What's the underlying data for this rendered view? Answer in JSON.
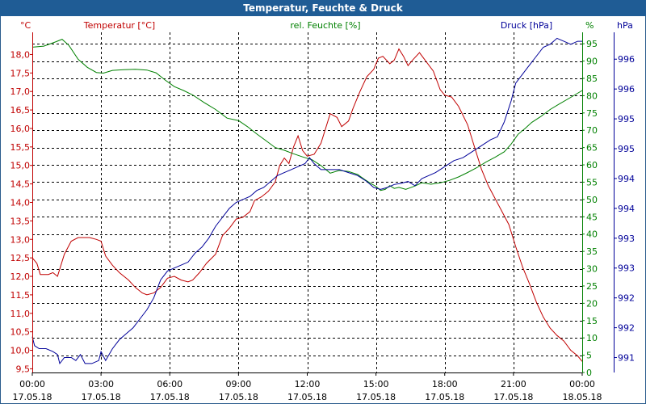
{
  "chart_data": {
    "type": "line",
    "title": "Temperatur, Feuchte & Druck",
    "grid": true,
    "colors": {
      "temp": "#c00000",
      "hum": "#008000",
      "press": "#000099",
      "title_bg": "#1f5c95"
    },
    "axes": {
      "left": {
        "label": "Temperatur [°C]",
        "unit": "°C",
        "color": "#c00000",
        "range": [
          9.4,
          18.6
        ],
        "ticks": [
          "9,5",
          "10,0",
          "10,5",
          "11,0",
          "11,5",
          "12,0",
          "12,5",
          "13,0",
          "13,5",
          "14,0",
          "14,5",
          "15,0",
          "15,5",
          "16,0",
          "16,5",
          "17,0",
          "17,5",
          "18,0"
        ],
        "tick_values": [
          9.5,
          10.0,
          10.5,
          11.0,
          11.5,
          12.0,
          12.5,
          13.0,
          13.5,
          14.0,
          14.5,
          15.0,
          15.5,
          16.0,
          16.5,
          17.0,
          17.5,
          18.0
        ]
      },
      "mid": {
        "label": "rel. Feuchte [%]",
        "unit": "%",
        "color": "#008000",
        "range": [
          0,
          98.3
        ],
        "ticks": [
          "0",
          "5",
          "10",
          "15",
          "20",
          "25",
          "30",
          "35",
          "40",
          "45",
          "50",
          "55",
          "60",
          "65",
          "70",
          "75",
          "80",
          "85",
          "90",
          "95"
        ],
        "tick_values": [
          0,
          5,
          10,
          15,
          20,
          25,
          30,
          35,
          40,
          45,
          50,
          55,
          60,
          65,
          70,
          75,
          80,
          85,
          90,
          95
        ]
      },
      "right": {
        "label": "Druck [hPa]",
        "unit": "hPa",
        "color": "#000099",
        "range": [
          990.75,
          996.45
        ],
        "ticks": [
          "991",
          "992",
          "992",
          "993",
          "993",
          "994",
          "994",
          "995",
          "995",
          "996",
          "996"
        ],
        "tick_values": [
          991.0,
          991.5,
          992.0,
          992.5,
          993.0,
          993.5,
          994.0,
          994.5,
          995.0,
          995.5,
          996.0
        ]
      }
    },
    "x": {
      "range": [
        0,
        24
      ],
      "ticks": [
        {
          "time": "00:00",
          "date": "17.05.18",
          "h": 0
        },
        {
          "time": "03:00",
          "date": "17.05.18",
          "h": 3
        },
        {
          "time": "06:00",
          "date": "17.05.18",
          "h": 6
        },
        {
          "time": "09:00",
          "date": "17.05.18",
          "h": 9
        },
        {
          "time": "12:00",
          "date": "17.05.18",
          "h": 12
        },
        {
          "time": "15:00",
          "date": "17.05.18",
          "h": 15
        },
        {
          "time": "18:00",
          "date": "17.05.18",
          "h": 18
        },
        {
          "time": "21:00",
          "date": "17.05.18",
          "h": 21
        },
        {
          "time": "00:00",
          "date": "18.05.18",
          "h": 24
        }
      ]
    },
    "series": [
      {
        "name": "Temperatur",
        "axis": "left",
        "color": "#c00000",
        "points": [
          [
            0,
            12.5
          ],
          [
            0.2,
            12.35
          ],
          [
            0.35,
            12.05
          ],
          [
            0.7,
            12.05
          ],
          [
            0.9,
            12.1
          ],
          [
            1.1,
            12.0
          ],
          [
            1.4,
            12.6
          ],
          [
            1.7,
            12.95
          ],
          [
            2.0,
            13.05
          ],
          [
            2.5,
            13.05
          ],
          [
            2.8,
            13.0
          ],
          [
            3.0,
            12.95
          ],
          [
            3.2,
            12.55
          ],
          [
            3.5,
            12.3
          ],
          [
            3.8,
            12.1
          ],
          [
            4.2,
            11.9
          ],
          [
            4.5,
            11.7
          ],
          [
            4.8,
            11.55
          ],
          [
            5.0,
            11.5
          ],
          [
            5.3,
            11.55
          ],
          [
            5.6,
            11.7
          ],
          [
            5.9,
            11.95
          ],
          [
            6.2,
            12.0
          ],
          [
            6.5,
            11.9
          ],
          [
            6.8,
            11.85
          ],
          [
            7.0,
            11.9
          ],
          [
            7.3,
            12.1
          ],
          [
            7.6,
            12.35
          ],
          [
            8.0,
            12.6
          ],
          [
            8.3,
            13.1
          ],
          [
            8.6,
            13.3
          ],
          [
            8.9,
            13.55
          ],
          [
            9.2,
            13.6
          ],
          [
            9.5,
            13.75
          ],
          [
            9.7,
            14.05
          ],
          [
            10.0,
            14.15
          ],
          [
            10.3,
            14.3
          ],
          [
            10.6,
            14.55
          ],
          [
            10.8,
            15.0
          ],
          [
            11.0,
            15.2
          ],
          [
            11.2,
            15.05
          ],
          [
            11.4,
            15.5
          ],
          [
            11.6,
            15.8
          ],
          [
            11.8,
            15.4
          ],
          [
            12.0,
            15.25
          ],
          [
            12.3,
            15.3
          ],
          [
            12.6,
            15.6
          ],
          [
            12.8,
            16.0
          ],
          [
            13.0,
            16.4
          ],
          [
            13.3,
            16.3
          ],
          [
            13.5,
            16.05
          ],
          [
            13.8,
            16.2
          ],
          [
            14.0,
            16.55
          ],
          [
            14.3,
            17.0
          ],
          [
            14.6,
            17.4
          ],
          [
            14.9,
            17.6
          ],
          [
            15.1,
            17.9
          ],
          [
            15.3,
            17.95
          ],
          [
            15.6,
            17.75
          ],
          [
            15.8,
            17.85
          ],
          [
            16.0,
            18.15
          ],
          [
            16.2,
            17.95
          ],
          [
            16.4,
            17.7
          ],
          [
            16.6,
            17.85
          ],
          [
            16.9,
            18.05
          ],
          [
            17.2,
            17.8
          ],
          [
            17.5,
            17.55
          ],
          [
            17.8,
            17.05
          ],
          [
            18.0,
            16.9
          ],
          [
            18.3,
            16.85
          ],
          [
            18.6,
            16.6
          ],
          [
            19.0,
            16.1
          ],
          [
            19.3,
            15.5
          ],
          [
            19.6,
            14.9
          ],
          [
            19.9,
            14.45
          ],
          [
            20.2,
            14.1
          ],
          [
            20.5,
            13.75
          ],
          [
            20.8,
            13.4
          ],
          [
            21.1,
            12.8
          ],
          [
            21.4,
            12.25
          ],
          [
            21.7,
            11.8
          ],
          [
            22.0,
            11.3
          ],
          [
            22.3,
            10.9
          ],
          [
            22.6,
            10.6
          ],
          [
            22.9,
            10.4
          ],
          [
            23.2,
            10.25
          ],
          [
            23.5,
            10.0
          ],
          [
            23.8,
            9.85
          ],
          [
            24.0,
            9.7
          ]
        ]
      },
      {
        "name": "rel. Feuchte",
        "axis": "mid",
        "color": "#008000",
        "points": [
          [
            0,
            94
          ],
          [
            0.5,
            94.3
          ],
          [
            1.0,
            95.5
          ],
          [
            1.3,
            96.3
          ],
          [
            1.6,
            94.5
          ],
          [
            2.0,
            90.5
          ],
          [
            2.4,
            88.2
          ],
          [
            2.8,
            86.7
          ],
          [
            3.1,
            86.5
          ],
          [
            3.5,
            87.3
          ],
          [
            4.0,
            87.5
          ],
          [
            4.5,
            87.6
          ],
          [
            5.0,
            87.4
          ],
          [
            5.4,
            86.6
          ],
          [
            5.8,
            84.5
          ],
          [
            6.2,
            82.6
          ],
          [
            6.6,
            81.5
          ],
          [
            7.0,
            80.2
          ],
          [
            7.5,
            78.0
          ],
          [
            8.0,
            76.0
          ],
          [
            8.5,
            73.5
          ],
          [
            9.0,
            72.8
          ],
          [
            9.4,
            71.0
          ],
          [
            9.8,
            68.9
          ],
          [
            10.2,
            67.0
          ],
          [
            10.6,
            65.0
          ],
          [
            11.0,
            64.2
          ],
          [
            11.4,
            63.2
          ],
          [
            11.8,
            62.3
          ],
          [
            12.2,
            61.5
          ],
          [
            12.6,
            59.8
          ],
          [
            13.0,
            57.6
          ],
          [
            13.4,
            58.4
          ],
          [
            13.8,
            58.1
          ],
          [
            14.2,
            57.2
          ],
          [
            14.5,
            55.8
          ],
          [
            14.8,
            54.5
          ],
          [
            15.0,
            53.8
          ],
          [
            15.2,
            52.6
          ],
          [
            15.4,
            52.9
          ],
          [
            15.6,
            54.0
          ],
          [
            15.8,
            53.2
          ],
          [
            16.0,
            53.5
          ],
          [
            16.3,
            52.9
          ],
          [
            16.7,
            53.9
          ],
          [
            17.0,
            54.8
          ],
          [
            17.4,
            54.4
          ],
          [
            17.8,
            54.8
          ],
          [
            18.2,
            55.5
          ],
          [
            18.6,
            56.5
          ],
          [
            19.0,
            57.8
          ],
          [
            19.4,
            59.2
          ],
          [
            19.8,
            60.8
          ],
          [
            20.2,
            62.2
          ],
          [
            20.6,
            63.8
          ],
          [
            20.9,
            66.0
          ],
          [
            21.2,
            68.8
          ],
          [
            21.5,
            70.5
          ],
          [
            21.8,
            72.3
          ],
          [
            22.2,
            74.0
          ],
          [
            22.6,
            76.0
          ],
          [
            23.0,
            77.6
          ],
          [
            23.5,
            79.5
          ],
          [
            24.0,
            81.5
          ]
        ]
      },
      {
        "name": "Druck",
        "axis": "right",
        "color": "#000099",
        "points": [
          [
            0,
            991.35
          ],
          [
            0.1,
            991.2
          ],
          [
            0.3,
            991.15
          ],
          [
            0.6,
            991.15
          ],
          [
            0.9,
            991.1
          ],
          [
            1.1,
            991.05
          ],
          [
            1.2,
            990.9
          ],
          [
            1.4,
            991.0
          ],
          [
            1.7,
            991.0
          ],
          [
            1.9,
            990.95
          ],
          [
            2.1,
            991.05
          ],
          [
            2.3,
            990.9
          ],
          [
            2.6,
            990.9
          ],
          [
            2.9,
            990.95
          ],
          [
            3.0,
            991.1
          ],
          [
            3.2,
            990.95
          ],
          [
            3.5,
            991.15
          ],
          [
            3.8,
            991.3
          ],
          [
            4.1,
            991.4
          ],
          [
            4.4,
            991.5
          ],
          [
            4.7,
            991.65
          ],
          [
            5.0,
            991.8
          ],
          [
            5.3,
            992.0
          ],
          [
            5.6,
            992.3
          ],
          [
            5.9,
            992.45
          ],
          [
            6.2,
            992.5
          ],
          [
            6.5,
            992.55
          ],
          [
            6.8,
            992.6
          ],
          [
            7.1,
            992.75
          ],
          [
            7.4,
            992.85
          ],
          [
            7.7,
            993.0
          ],
          [
            8.0,
            993.2
          ],
          [
            8.3,
            993.35
          ],
          [
            8.6,
            993.5
          ],
          [
            8.9,
            993.6
          ],
          [
            9.2,
            993.65
          ],
          [
            9.5,
            993.7
          ],
          [
            9.8,
            993.8
          ],
          [
            10.1,
            993.85
          ],
          [
            10.4,
            993.95
          ],
          [
            10.7,
            994.05
          ],
          [
            11.0,
            994.1
          ],
          [
            11.3,
            994.15
          ],
          [
            11.6,
            994.2
          ],
          [
            11.9,
            994.25
          ],
          [
            12.1,
            994.35
          ],
          [
            12.3,
            994.25
          ],
          [
            12.6,
            994.15
          ],
          [
            13.0,
            994.15
          ],
          [
            13.4,
            994.15
          ],
          [
            13.8,
            994.1
          ],
          [
            14.2,
            994.05
          ],
          [
            14.6,
            993.95
          ],
          [
            14.9,
            993.85
          ],
          [
            15.2,
            993.82
          ],
          [
            15.5,
            993.85
          ],
          [
            15.8,
            993.9
          ],
          [
            16.1,
            993.92
          ],
          [
            16.4,
            993.95
          ],
          [
            16.7,
            993.88
          ],
          [
            17.0,
            994.0
          ],
          [
            17.3,
            994.05
          ],
          [
            17.6,
            994.1
          ],
          [
            18.0,
            994.2
          ],
          [
            18.4,
            994.3
          ],
          [
            18.8,
            994.35
          ],
          [
            19.2,
            994.45
          ],
          [
            19.6,
            994.55
          ],
          [
            20.0,
            994.65
          ],
          [
            20.3,
            994.7
          ],
          [
            20.6,
            994.95
          ],
          [
            20.9,
            995.3
          ],
          [
            21.1,
            995.6
          ],
          [
            21.4,
            995.75
          ],
          [
            21.7,
            995.9
          ],
          [
            22.0,
            996.05
          ],
          [
            22.3,
            996.2
          ],
          [
            22.6,
            996.25
          ],
          [
            22.9,
            996.35
          ],
          [
            23.2,
            996.3
          ],
          [
            23.5,
            996.25
          ],
          [
            23.8,
            996.3
          ],
          [
            24.0,
            996.3
          ]
        ]
      }
    ]
  }
}
